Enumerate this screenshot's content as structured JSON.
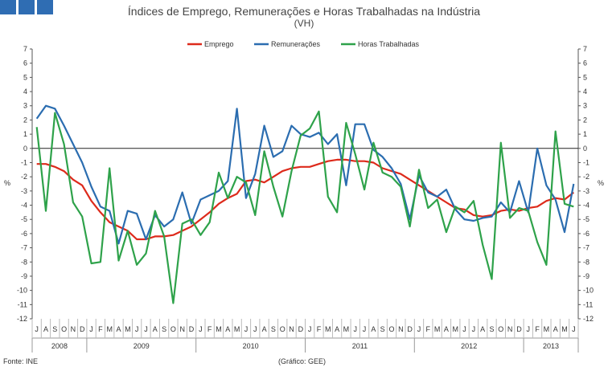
{
  "header": {
    "logo_icon": "ine-logo-squares",
    "title_line1": "Índices de Emprego, Remunerações e Horas Trabalhadas na Indústria",
    "title_line2": "(VH)"
  },
  "footer": {
    "source": "Fonte: INE",
    "credit": "(Gráfico: GEE)"
  },
  "chart_data": {
    "type": "line",
    "title": "Índices de Emprego, Remunerações e Horas Trabalhadas na Indústria (VH)",
    "ylabel_left": "%",
    "ylabel_right": "%",
    "ylim": [
      -12,
      7
    ],
    "yticks": [
      7,
      6,
      5,
      4,
      3,
      2,
      1,
      0,
      -1,
      -2,
      -3,
      -4,
      -5,
      -6,
      -7,
      -8,
      -9,
      -10,
      -11,
      -12
    ],
    "month_labels": [
      "J",
      "A",
      "S",
      "O",
      "N",
      "D",
      "J",
      "F",
      "M",
      "A",
      "M",
      "J",
      "J",
      "A",
      "S",
      "O",
      "N",
      "D",
      "J",
      "F",
      "M",
      "A",
      "M",
      "J",
      "J",
      "A",
      "S",
      "O",
      "N",
      "D",
      "J",
      "F",
      "M",
      "A",
      "M",
      "J",
      "J",
      "A",
      "S",
      "O",
      "N",
      "D",
      "J",
      "F",
      "M",
      "A",
      "M",
      "J",
      "J",
      "A",
      "S",
      "O",
      "N",
      "D",
      "J",
      "F",
      "M",
      "A",
      "M",
      "J"
    ],
    "years": [
      {
        "label": "2008",
        "start": 0,
        "count": 6
      },
      {
        "label": "2009",
        "start": 6,
        "count": 12
      },
      {
        "label": "2010",
        "start": 18,
        "count": 12
      },
      {
        "label": "2011",
        "start": 30,
        "count": 12
      },
      {
        "label": "2012",
        "start": 42,
        "count": 12
      },
      {
        "label": "2013",
        "start": 54,
        "count": 6
      }
    ],
    "series": [
      {
        "name": "Emprego",
        "color": "#dd2a1b",
        "values": [
          -1.1,
          -1.1,
          -1.3,
          -1.6,
          -2.2,
          -2.6,
          -3.7,
          -4.5,
          -5.2,
          -5.5,
          -5.8,
          -6.4,
          -6.4,
          -6.2,
          -6.2,
          -6.1,
          -5.8,
          -5.5,
          -5.0,
          -4.5,
          -3.9,
          -3.5,
          -3.2,
          -2.3,
          -2.2,
          -2.4,
          -2.0,
          -1.6,
          -1.4,
          -1.3,
          -1.3,
          -1.1,
          -0.9,
          -0.8,
          -0.8,
          -0.9,
          -0.9,
          -1.0,
          -1.4,
          -1.6,
          -1.8,
          -2.2,
          -2.6,
          -3.0,
          -3.4,
          -3.8,
          -4.2,
          -4.3,
          -4.7,
          -4.8,
          -4.7,
          -4.4,
          -4.3,
          -4.4,
          -4.2,
          -4.1,
          -3.7,
          -3.5,
          -3.6,
          -3.1
        ]
      },
      {
        "name": "Remunerações",
        "color": "#2b6db0",
        "values": [
          2.1,
          3.0,
          2.8,
          1.6,
          0.3,
          -1.0,
          -2.7,
          -4.1,
          -4.4,
          -6.7,
          -4.4,
          -4.6,
          -6.4,
          -4.7,
          -5.5,
          -5.0,
          -3.1,
          -5.3,
          -3.6,
          -3.3,
          -3.0,
          -2.3,
          2.8,
          -3.5,
          -1.8,
          1.6,
          -0.6,
          -0.2,
          1.6,
          1.0,
          0.8,
          1.1,
          0.3,
          1.0,
          -2.6,
          1.7,
          1.7,
          -0.1,
          -0.6,
          -1.4,
          -2.5,
          -5.0,
          -1.9,
          -3.1,
          -3.4,
          -2.9,
          -4.3,
          -5.0,
          -5.1,
          -4.9,
          -4.8,
          -3.8,
          -4.5,
          -2.3,
          -4.5,
          0.0,
          -2.6,
          -3.6,
          -5.9,
          -2.5
        ]
      },
      {
        "name": "Horas Trabalhadas",
        "color": "#2ea24a",
        "values": [
          1.5,
          -4.4,
          2.5,
          0.3,
          -3.8,
          -4.8,
          -8.1,
          -8.0,
          -1.4,
          -7.9,
          -5.8,
          -8.2,
          -7.4,
          -4.4,
          -6.2,
          -10.9,
          -5.3,
          -5.0,
          -6.1,
          -5.2,
          -1.7,
          -3.5,
          -2.0,
          -2.4,
          -4.7,
          -0.2,
          -2.7,
          -4.8,
          -1.6,
          0.9,
          1.4,
          2.6,
          -3.4,
          -4.5,
          1.8,
          -0.4,
          -2.9,
          0.4,
          -1.7,
          -2.0,
          -2.7,
          -5.5,
          -1.5,
          -4.2,
          -3.6,
          -5.9,
          -4.1,
          -4.5,
          -3.7,
          -6.8,
          -9.2,
          0.4,
          -4.9,
          -4.2,
          -4.4,
          -6.6,
          -8.2,
          1.2,
          -3.9,
          -4.1
        ]
      }
    ]
  }
}
